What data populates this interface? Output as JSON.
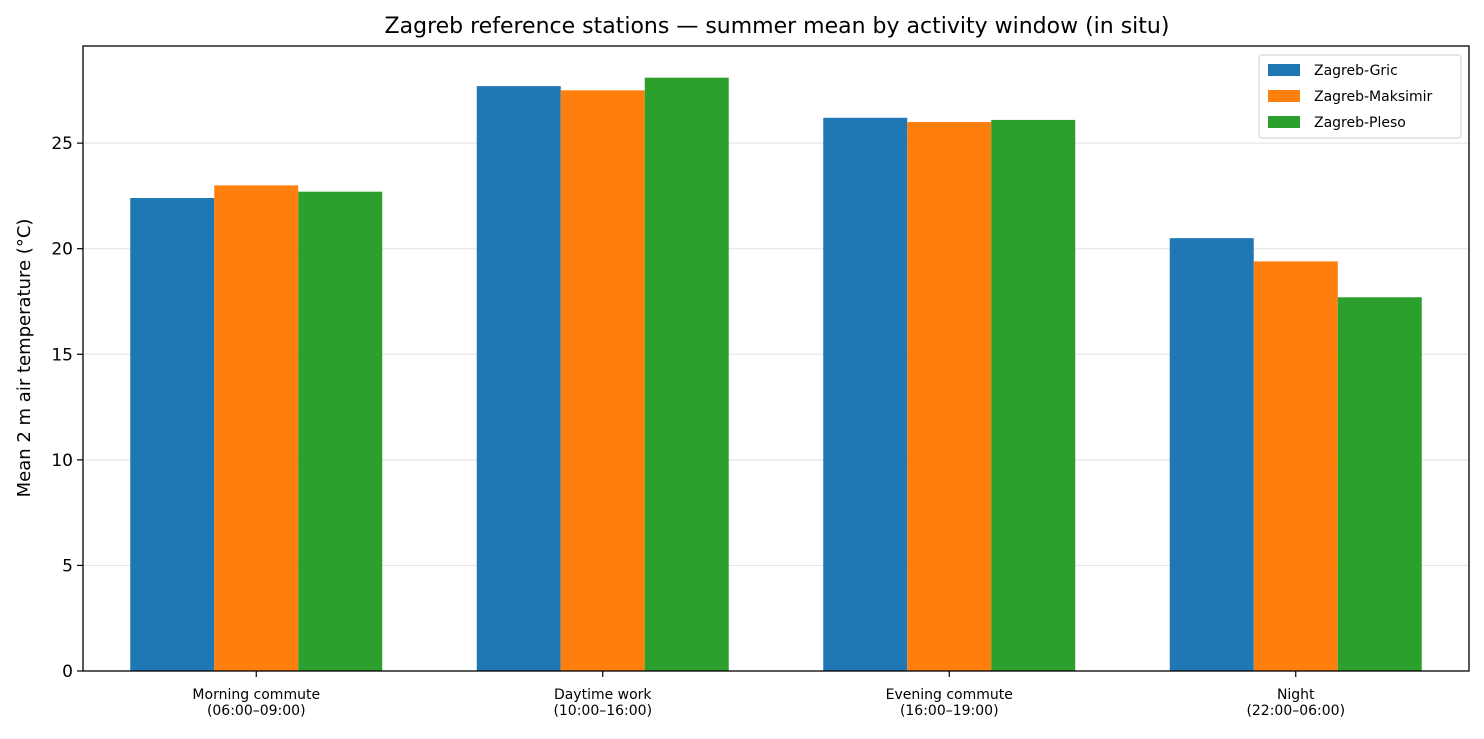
{
  "chart_data": {
    "type": "bar",
    "title": "Zagreb reference stations — summer mean by activity window (in situ)",
    "xlabel": "",
    "ylabel": "Mean 2 m air temperature (°C)",
    "categories": [
      [
        "Morning commute",
        "(06:00–09:00)"
      ],
      [
        "Daytime work",
        "(10:00–16:00)"
      ],
      [
        "Evening commute",
        "(16:00–19:00)"
      ],
      [
        "Night",
        "(22:00–06:00)"
      ]
    ],
    "series": [
      {
        "name": "Zagreb-Gric",
        "color": "#1f77b4",
        "values": [
          22.4,
          27.7,
          26.2,
          20.5
        ]
      },
      {
        "name": "Zagreb-Maksimir",
        "color": "#ff7f0e",
        "values": [
          23.0,
          27.5,
          26.0,
          19.4
        ]
      },
      {
        "name": "Zagreb-Pleso",
        "color": "#2ca02c",
        "values": [
          22.7,
          28.1,
          26.1,
          17.7
        ]
      }
    ],
    "ylim": [
      0,
      29.6
    ],
    "yticks": [
      0,
      5,
      10,
      15,
      20,
      25
    ],
    "grid": "y",
    "legend_position": "top-right"
  }
}
